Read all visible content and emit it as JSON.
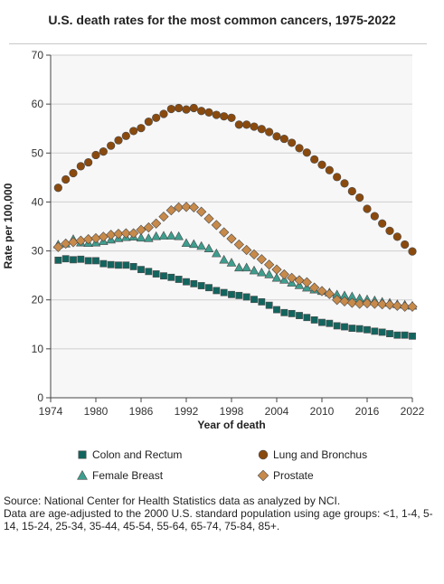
{
  "chart_data": {
    "type": "scatter",
    "title": "U.S. death rates for the most common cancers, 1975-2022",
    "xlabel": "Year of death",
    "ylabel": "Rate per 100,000",
    "xlim": [
      1974,
      2022
    ],
    "ylim": [
      0,
      70
    ],
    "x_ticks": [
      1974,
      1980,
      1986,
      1992,
      1998,
      2004,
      2010,
      2016,
      2022
    ],
    "y_ticks": [
      0,
      10,
      20,
      30,
      40,
      50,
      60,
      70
    ],
    "grid": true,
    "legend_position": "bottom",
    "x": [
      1975,
      1976,
      1977,
      1978,
      1979,
      1980,
      1981,
      1982,
      1983,
      1984,
      1985,
      1986,
      1987,
      1988,
      1989,
      1990,
      1991,
      1992,
      1993,
      1994,
      1995,
      1996,
      1997,
      1998,
      1999,
      2000,
      2001,
      2002,
      2003,
      2004,
      2005,
      2006,
      2007,
      2008,
      2009,
      2010,
      2011,
      2012,
      2013,
      2014,
      2015,
      2016,
      2017,
      2018,
      2019,
      2020,
      2021,
      2022
    ],
    "series": [
      {
        "name": "Colon and Rectum",
        "marker": "square",
        "color": "#12655e",
        "values": [
          28.1,
          28.4,
          28.2,
          28.3,
          28.0,
          28.0,
          27.4,
          27.2,
          27.1,
          27.1,
          26.8,
          26.2,
          25.8,
          25.3,
          24.9,
          24.6,
          24.2,
          23.7,
          23.3,
          22.9,
          22.5,
          21.9,
          21.5,
          21.1,
          20.9,
          20.6,
          20.1,
          19.6,
          18.9,
          18.0,
          17.4,
          17.2,
          16.8,
          16.4,
          15.9,
          15.4,
          15.2,
          14.7,
          14.5,
          14.2,
          14.1,
          13.9,
          13.6,
          13.4,
          13.1,
          12.8,
          12.8,
          12.6
        ]
      },
      {
        "name": "Lung and Bronchus",
        "marker": "circle",
        "color": "#8a4a0e",
        "values": [
          42.9,
          44.6,
          45.9,
          47.3,
          48.1,
          49.6,
          50.3,
          51.5,
          52.6,
          53.5,
          54.5,
          55.1,
          56.4,
          57.2,
          58.0,
          59.0,
          59.2,
          58.9,
          59.2,
          58.6,
          58.3,
          57.8,
          57.5,
          57.2,
          55.8,
          55.8,
          55.4,
          54.9,
          54.3,
          53.4,
          52.9,
          52.1,
          51.0,
          50.1,
          48.7,
          47.6,
          46.5,
          45.1,
          43.8,
          42.2,
          40.9,
          38.6,
          37.1,
          35.6,
          34.1,
          32.9,
          31.3,
          29.9
        ]
      },
      {
        "name": "Female Breast",
        "marker": "triangle",
        "color": "#3e9e8e",
        "values": [
          31.3,
          31.5,
          32.4,
          31.7,
          31.6,
          31.7,
          32.0,
          32.3,
          32.6,
          32.8,
          32.9,
          32.7,
          32.6,
          33.0,
          33.1,
          33.1,
          33.0,
          31.6,
          31.4,
          31.0,
          30.5,
          29.5,
          28.2,
          27.6,
          26.6,
          26.6,
          26.0,
          25.6,
          25.2,
          24.5,
          24.1,
          23.5,
          23.0,
          22.5,
          22.1,
          21.8,
          21.5,
          21.1,
          20.9,
          20.7,
          20.3,
          20.1,
          19.9,
          19.6,
          19.4,
          19.1,
          19.0,
          18.8
        ]
      },
      {
        "name": "Prostate",
        "marker": "diamond",
        "color": "#c78a4a",
        "values": [
          30.8,
          31.5,
          31.8,
          32.1,
          32.4,
          32.6,
          32.9,
          33.3,
          33.5,
          33.6,
          33.6,
          34.3,
          34.8,
          35.6,
          37.0,
          38.3,
          38.9,
          39.0,
          38.9,
          38.0,
          36.6,
          35.3,
          33.8,
          32.5,
          31.3,
          30.2,
          29.3,
          28.3,
          27.2,
          26.2,
          25.2,
          24.5,
          24.0,
          23.6,
          22.5,
          21.8,
          21.2,
          20.0,
          19.7,
          19.4,
          19.2,
          19.3,
          19.2,
          19.1,
          19.0,
          18.8,
          18.6,
          18.6
        ]
      }
    ]
  },
  "footnote": {
    "source": "Source: National Center for Health Statistics data as analyzed by NCI.",
    "note": "Data are age-adjusted to the 2000 U.S. standard population using age groups: <1, 1-4, 5-14, 15-24, 25-34, 35-44, 45-54, 55-64, 65-74, 75-84, 85+."
  }
}
